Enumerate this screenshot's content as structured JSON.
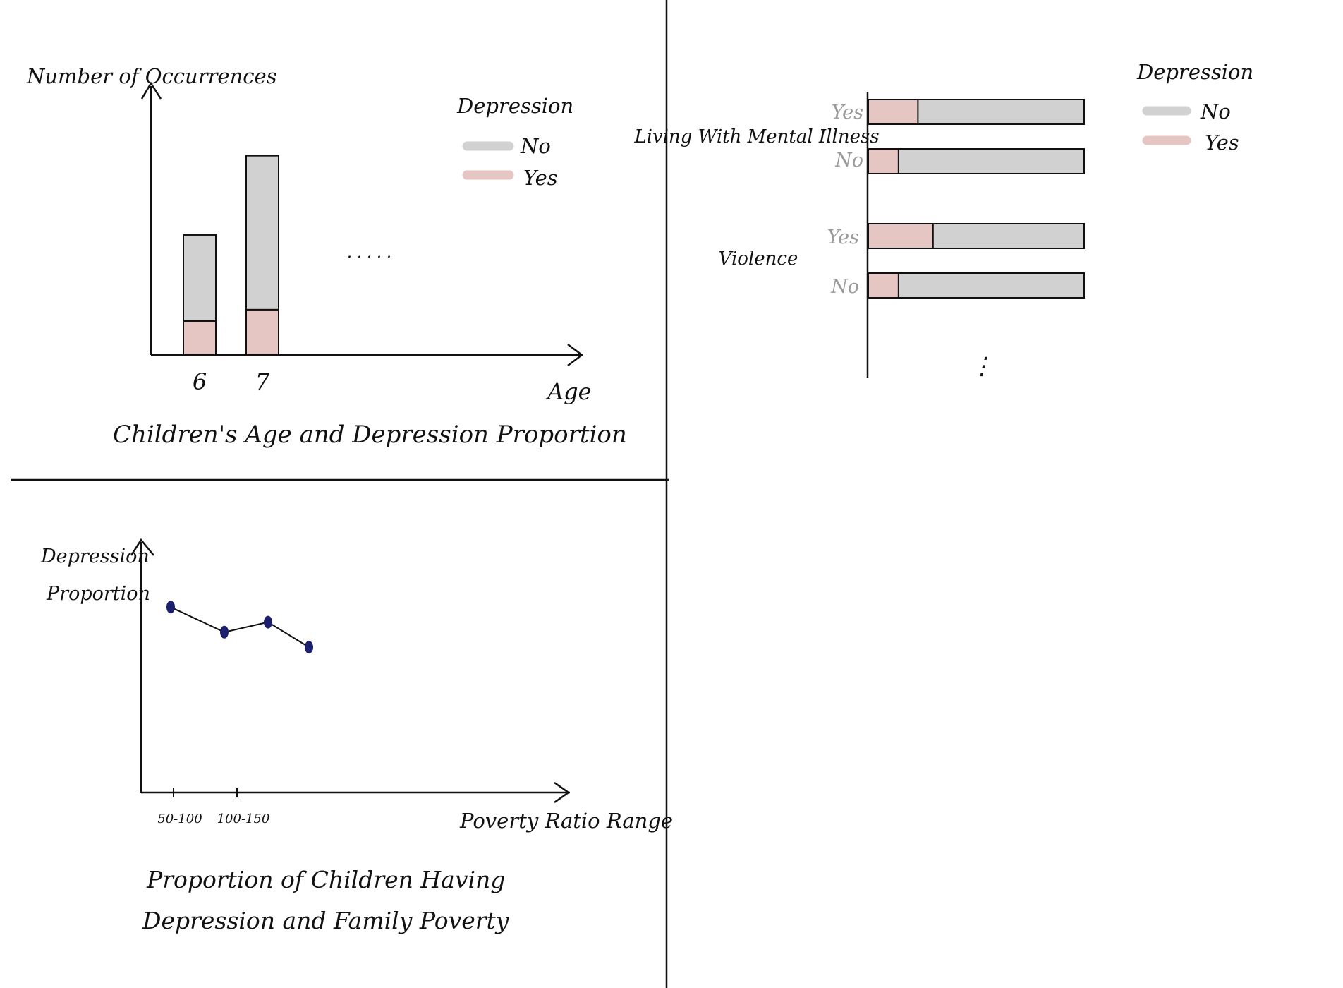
{
  "colors": {
    "no": "#d1d1d1",
    "yes": "#e6c6c2",
    "point": "#1c1f6b",
    "ink": "#111111"
  },
  "chart_data": [
    {
      "type": "bar",
      "stacked": true,
      "title": "Children's Age and Depression Proportion",
      "xlabel": "Age",
      "ylabel": "Number of Occurrences",
      "categories": [
        "6",
        "7"
      ],
      "series": [
        {
          "name": "Yes",
          "values": [
            1.5,
            2
          ]
        },
        {
          "name": "No",
          "values": [
            3.8,
            6.8
          ]
        }
      ],
      "ylim": [
        0,
        12
      ],
      "continuation": ". . . . .",
      "legend": {
        "title": "Depression",
        "entries": [
          "No",
          "Yes"
        ],
        "placement": "top-right"
      }
    },
    {
      "type": "bar",
      "orientation": "horizontal",
      "stacked_percent": true,
      "groups": [
        {
          "label": "Living With Mental Illness",
          "bars": [
            {
              "label": "Yes",
              "yes": 23
            },
            {
              "label": "No",
              "yes": 14
            }
          ]
        },
        {
          "label": "Violence",
          "bars": [
            {
              "label": "Yes",
              "yes": 30
            },
            {
              "label": "No",
              "yes": 14
            }
          ]
        }
      ],
      "continuation": "⋮",
      "legend": {
        "title": "Depression",
        "entries": [
          "No",
          "Yes"
        ],
        "placement": "top-right"
      }
    },
    {
      "type": "line",
      "title_lines": [
        "Proportion of Children Having",
        "Depression and Family Poverty"
      ],
      "xlabel": "Poverty Ratio Range",
      "ylabel_lines": [
        "Depression",
        "Proportion"
      ],
      "x_ticks": [
        "50-100",
        "100-150"
      ],
      "x": [
        1,
        2,
        3,
        4
      ],
      "y": [
        0.74,
        0.64,
        0.68,
        0.58
      ],
      "ylim": [
        0,
        1
      ]
    }
  ]
}
